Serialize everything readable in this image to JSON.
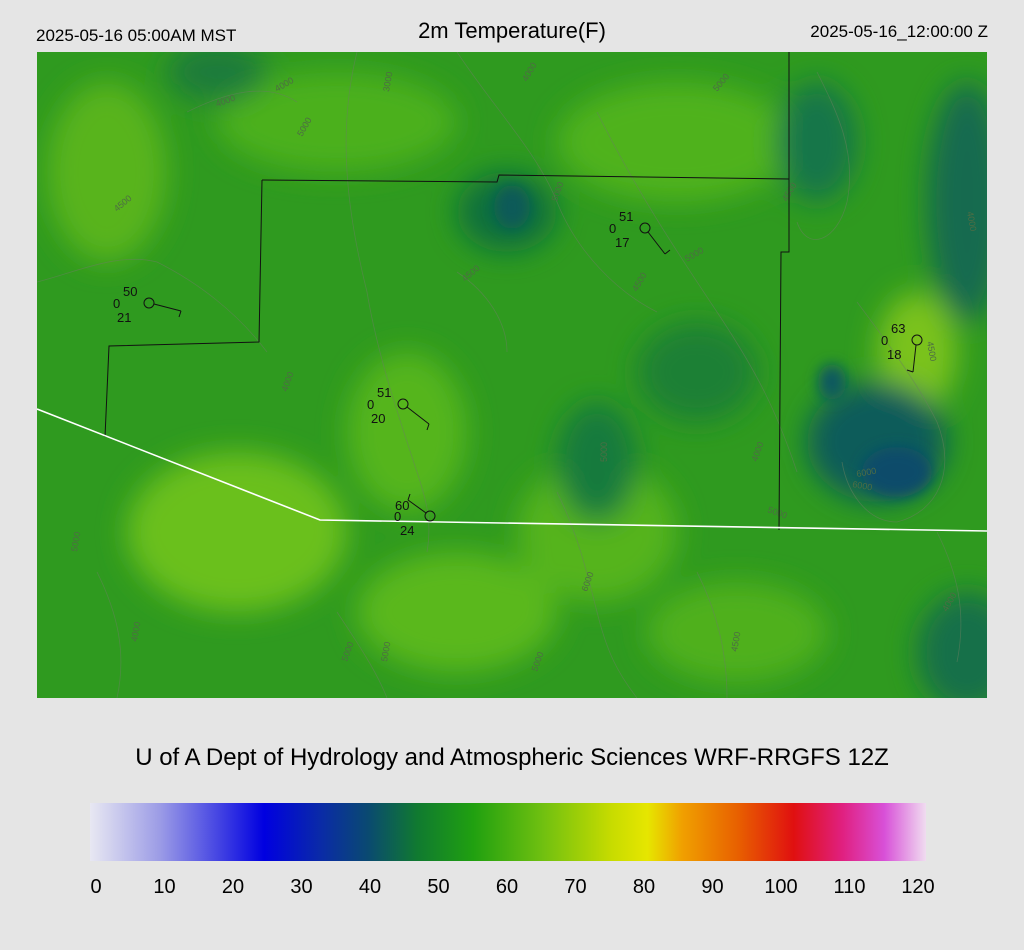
{
  "header": {
    "local_time": "2025-05-16 05:00AM MST",
    "field_title": "2m Temperature(F)",
    "valid_time": "2025-05-16_12:00:00 Z"
  },
  "footer": {
    "model_title": "U of A Dept of Hydrology and Atmospheric Sciences WRF-RRGFS 12Z"
  },
  "colorbar": {
    "ticks": [
      "0",
      "10",
      "20",
      "30",
      "40",
      "50",
      "60",
      "70",
      "80",
      "90",
      "100",
      "110",
      "120"
    ],
    "stops": [
      {
        "value": 0,
        "color": "#e8e8f2"
      },
      {
        "value": 10,
        "color": "#9c9ce6"
      },
      {
        "value": 25,
        "color": "#0000e0"
      },
      {
        "value": 33,
        "color": "#0a2aa8"
      },
      {
        "value": 40,
        "color": "#0a4a70"
      },
      {
        "value": 47,
        "color": "#107a30"
      },
      {
        "value": 55,
        "color": "#20a010"
      },
      {
        "value": 65,
        "color": "#70c010"
      },
      {
        "value": 75,
        "color": "#c8dc00"
      },
      {
        "value": 80,
        "color": "#e6e600"
      },
      {
        "value": 85,
        "color": "#f0a000"
      },
      {
        "value": 93,
        "color": "#e86000"
      },
      {
        "value": 101,
        "color": "#e01010"
      },
      {
        "value": 108,
        "color": "#e02080"
      },
      {
        "value": 114,
        "color": "#d850d8"
      },
      {
        "value": 120,
        "color": "#f0dcf0"
      }
    ]
  },
  "contour_labels": [
    "3000",
    "4000",
    "4000",
    "4000",
    "5000",
    "4500",
    "4500",
    "5000",
    "5000",
    "5000",
    "5000",
    "6000",
    "6000",
    "5000",
    "4000",
    "4000",
    "4500",
    "4000",
    "5000",
    "5000",
    "5000",
    "6000",
    "4500",
    "4500",
    "5000",
    "4000",
    "4500",
    "4000"
  ],
  "stations": [
    {
      "id": "stn-1",
      "temp": "50",
      "gust": "0",
      "dewpoint": "21"
    },
    {
      "id": "stn-2",
      "temp": "51",
      "gust": "0",
      "dewpoint": "17"
    },
    {
      "id": "stn-3",
      "temp": "51",
      "gust": "0",
      "dewpoint": "20"
    },
    {
      "id": "stn-4",
      "temp": "63",
      "gust": "0",
      "dewpoint": "18"
    },
    {
      "id": "stn-5",
      "temp": "60",
      "gust": "0",
      "dewpoint": "24"
    }
  ],
  "palette": {
    "background": "#e5e5e5",
    "map_base": "#2f9a1f",
    "map_warm": "#5cb81a",
    "map_cool": "#12704a",
    "county_line": "#111111",
    "state_line": "#ffffff"
  }
}
